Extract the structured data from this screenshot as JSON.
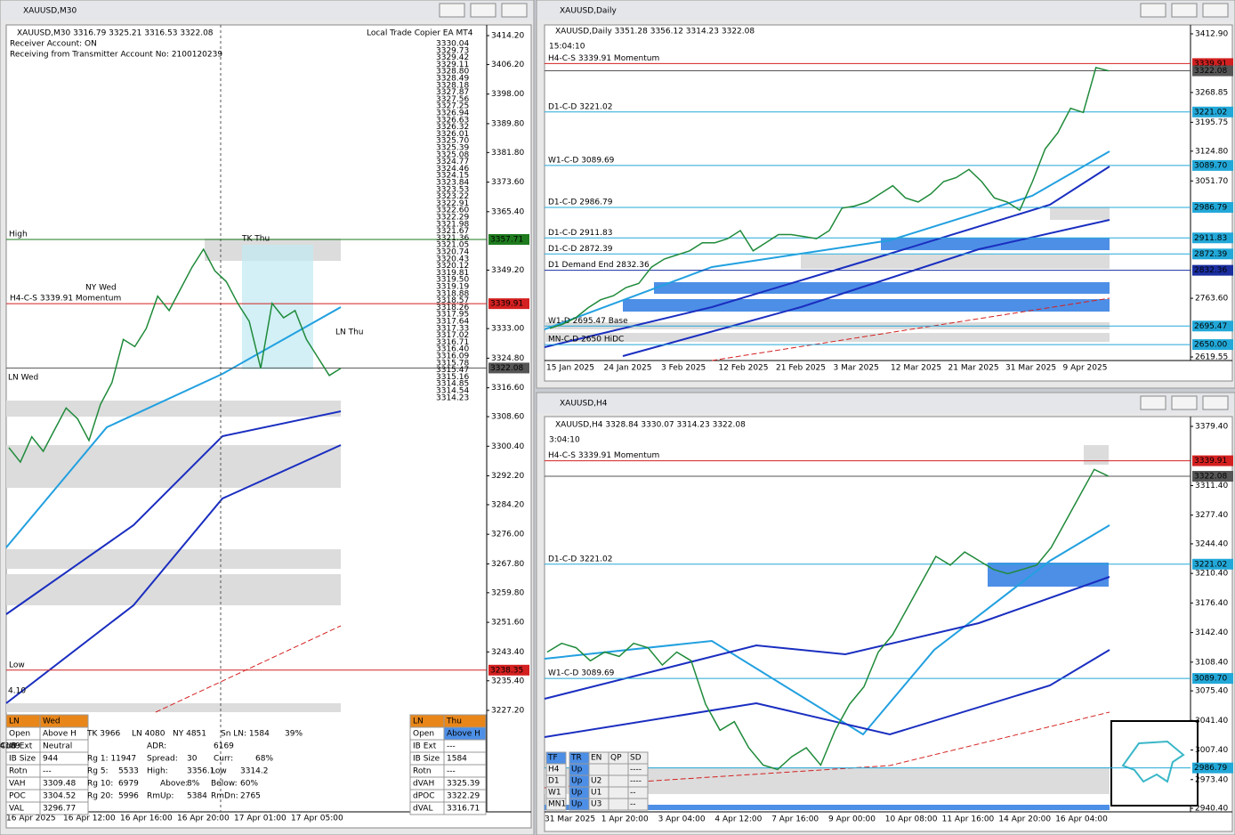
{
  "windows": [
    {
      "title": "XAUUSD,M30",
      "header": "XAUUSD,M30  3316.79 3325.21 3316.53 3322.08",
      "notes": [
        "Receiver Account: ON",
        "Receiving from Transmitter Account No: 2100120239"
      ],
      "ea": "Local Trade Copier EA MT4",
      "price_ticks": [
        "3414.20",
        "3406.20",
        "3398.00",
        "3389.80",
        "3381.80",
        "3373.60",
        "3365.40",
        "3349.20",
        "3333.00",
        "3324.80",
        "3316.60",
        "3308.60",
        "3300.40",
        "3292.20",
        "3284.20",
        "3276.00",
        "3267.80",
        "3259.80",
        "3251.60",
        "3243.40",
        "3235.40",
        "3227.20"
      ],
      "price_tags": [
        {
          "text": "3357.71",
          "color": "#1e7b1e"
        },
        {
          "text": "3339.91",
          "color": "#d42020"
        },
        {
          "text": "3322.08",
          "color": "#555555"
        },
        {
          "text": "3238.35",
          "color": "#d42020"
        }
      ],
      "levels": [
        "H4-C-S 3339.91 Momentum"
      ],
      "annotations": [
        "High",
        "Low",
        "NY Wed",
        "LN Wed",
        "TK Thu",
        "LN Thu",
        "4.10"
      ],
      "ladder": [
        "3330.04",
        "3329.73",
        "3329.42",
        "3329.11",
        "3328.80",
        "3328.49",
        "3328.18",
        "3327.87",
        "3327.56",
        "3327.25",
        "3326.94",
        "3326.63",
        "3326.32",
        "3326.01",
        "3325.70",
        "3325.39",
        "3325.08",
        "3324.77",
        "3324.46",
        "3324.15",
        "3323.84",
        "3323.53",
        "3323.22",
        "3322.91",
        "3322.60",
        "3322.29",
        "3321.98",
        "3321.67",
        "3321.36",
        "3321.05",
        "3320.74",
        "3320.43",
        "3320.12",
        "3319.81",
        "3319.50",
        "3319.19",
        "3318.88",
        "3318.57",
        "3318.26",
        "3317.95",
        "3317.64",
        "3317.33",
        "3317.02",
        "3316.71",
        "3316.40",
        "3316.09",
        "3315.78",
        "3315.47",
        "3315.16",
        "3314.85",
        "3314.54",
        "3314.23"
      ],
      "date_ticks": [
        "16 Apr 2025",
        "16 Apr 12:00",
        "16 Apr 16:00",
        "16 Apr 20:00",
        "17 Apr 01:00",
        "17 Apr 05:00"
      ],
      "closes": [
        3300,
        3296,
        3303,
        3299,
        3305,
        3311,
        3308,
        3302,
        3312,
        3318,
        3330,
        3328,
        3333,
        3342,
        3338,
        3344,
        3350,
        3355,
        3349,
        3346,
        3340,
        3335,
        3322,
        3340,
        3336,
        3338,
        3330,
        3325,
        3320,
        3322
      ],
      "panel_left": [
        [
          "LN",
          "Wed"
        ],
        [
          "Open",
          "Above H"
        ],
        [
          "IB Ext",
          "Neutral"
        ],
        [
          "IB Size",
          "944"
        ],
        [
          "Rotn",
          "---"
        ],
        [
          "VAH",
          "3309.48"
        ],
        [
          "POC",
          "3304.52"
        ],
        [
          "VAL",
          "3296.77"
        ]
      ],
      "stats": [
        [
          "TK 3966",
          "LN 4080",
          "NY 4851",
          "Sn LN: 1584",
          "39%"
        ],
        [
          "ADR:",
          "6169",
          "Corr:",
          "4189"
        ],
        [
          "Rg 1: 11947",
          "Spread:",
          "30",
          "Curr:",
          "68%"
        ],
        [
          "Rg 5:",
          "5533",
          "High:",
          "3356.1",
          "Low",
          "3314.2"
        ],
        [
          "Rg 10:",
          "6979",
          "Above:",
          "8%",
          "Below:",
          "60%"
        ],
        [
          "Rg 20:",
          "5996",
          "RmUp:",
          "5384",
          "RmDn:",
          "2765"
        ]
      ],
      "panel_right": [
        [
          "LN",
          "Thu"
        ],
        [
          "Open",
          "Above H"
        ],
        [
          "IB Ext",
          "---"
        ],
        [
          "IB Size",
          "1584"
        ],
        [
          "Rotn",
          "---"
        ],
        [
          "dVAH",
          "3325.39"
        ],
        [
          "dPOC",
          "3322.29"
        ],
        [
          "dVAL",
          "3316.71"
        ]
      ]
    },
    {
      "title": "XAUUSD,Daily",
      "header": "XAUUSD,Daily  3351.28 3356.12 3314.23 3322.08",
      "timer": "15:04:10",
      "price_ticks": [
        "3412.90",
        "3268.85",
        "3195.75",
        "3124.80",
        "3051.70",
        "2763.60",
        "2619.55"
      ],
      "price_tags": [
        {
          "text": "3339.91",
          "color": "#d42020"
        },
        {
          "text": "3322.08",
          "color": "#555555"
        },
        {
          "text": "3221.02",
          "color": "#22a8d8"
        },
        {
          "text": "3089.70",
          "color": "#22a8d8"
        },
        {
          "text": "2986.79",
          "color": "#22a8d8"
        },
        {
          "text": "2911.83",
          "color": "#22a8d8"
        },
        {
          "text": "2872.39",
          "color": "#22a8d8"
        },
        {
          "text": "2832.36",
          "color": "#1a2ea0"
        },
        {
          "text": "2695.47",
          "color": "#22a8d8"
        },
        {
          "text": "2650.00",
          "color": "#22a8d8"
        }
      ],
      "levels": [
        "H4-C-S 3339.91 Momentum",
        "D1-C-D 3221.02",
        "W1-C-D 3089.69",
        "D1-C-D 2986.79",
        "D1-C-D 2911.83",
        "D1-C-D 2872.39",
        "D1 Demand End 2832.36",
        "W1-D 2695.47 Base",
        "MN-C-D 2650 HiDC"
      ],
      "date_ticks": [
        "15 Jan 2025",
        "24 Jan 2025",
        "3 Feb 2025",
        "12 Feb 2025",
        "21 Feb 2025",
        "3 Mar 2025",
        "12 Mar 2025",
        "21 Mar 2025",
        "31 Mar 2025",
        "9 Apr 2025"
      ],
      "closes": [
        2690,
        2700,
        2715,
        2740,
        2760,
        2770,
        2790,
        2800,
        2840,
        2860,
        2870,
        2880,
        2900,
        2900,
        2910,
        2930,
        2880,
        2900,
        2920,
        2920,
        2915,
        2910,
        2930,
        2985,
        2990,
        3000,
        3020,
        3040,
        3010,
        3000,
        3020,
        3050,
        3060,
        3080,
        3050,
        3010,
        3000,
        2980,
        3050,
        3130,
        3170,
        3230,
        3220,
        3330,
        3322
      ],
      "trend": null
    },
    {
      "title": "XAUUSD,H4",
      "header": "XAUUSD,H4  3328.84 3330.07 3314.23 3322.08",
      "timer": "3:04:10",
      "price_ticks": [
        "3379.40",
        "3311.40",
        "3277.40",
        "3244.40",
        "3210.40",
        "3176.40",
        "3142.40",
        "3108.40",
        "3075.40",
        "3041.40",
        "3007.40",
        "2973.40",
        "2940.40"
      ],
      "price_tags": [
        {
          "text": "3339.91",
          "color": "#d42020"
        },
        {
          "text": "3322.08",
          "color": "#555555"
        },
        {
          "text": "3221.02",
          "color": "#22a8d8"
        },
        {
          "text": "3089.70",
          "color": "#22a8d8"
        },
        {
          "text": "2986.79",
          "color": "#22a8d8"
        }
      ],
      "levels": [
        "H4-C-S 3339.91 Momentum",
        "D1-C-D 3221.02",
        "W1-C-D 3089.69"
      ],
      "date_ticks": [
        "31 Mar 2025",
        "1 Apr 20:00",
        "3 Apr 04:00",
        "4 Apr 12:00",
        "7 Apr 16:00",
        "9 Apr 00:00",
        "10 Apr 08:00",
        "11 Apr 16:00",
        "14 Apr 20:00",
        "16 Apr 04:00"
      ],
      "closes": [
        3120,
        3130,
        3125,
        3110,
        3120,
        3115,
        3130,
        3125,
        3105,
        3120,
        3110,
        3060,
        3030,
        3040,
        3010,
        2990,
        2985,
        3000,
        3010,
        2990,
        3030,
        3060,
        3080,
        3120,
        3140,
        3170,
        3200,
        3230,
        3220,
        3235,
        3225,
        3215,
        3210,
        3215,
        3220,
        3240,
        3270,
        3300,
        3330,
        3322
      ],
      "trend": [
        [
          "TF",
          "TR",
          "EN",
          "QP",
          "SD"
        ],
        [
          "H4",
          "Up",
          "",
          "",
          "----"
        ],
        [
          "D1",
          "Up",
          "U2",
          "",
          "----"
        ],
        [
          "W1",
          "Up",
          "U1",
          "",
          "--"
        ],
        [
          "MN1",
          "Up",
          "U3",
          "",
          "--"
        ]
      ]
    }
  ]
}
